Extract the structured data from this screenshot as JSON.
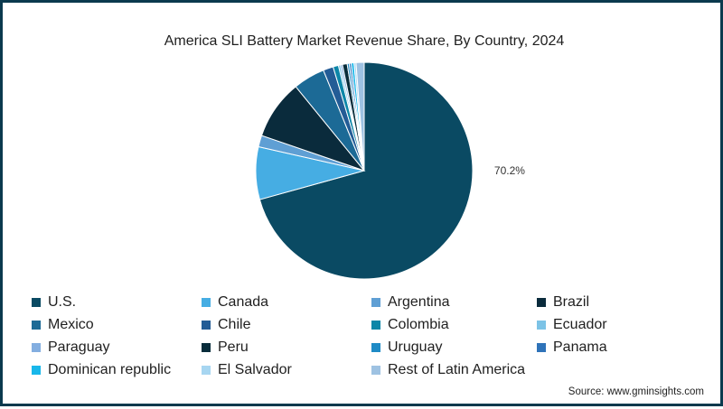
{
  "chart_data": {
    "type": "pie",
    "title": "America SLI Battery Market Revenue Share, By Country, 2024",
    "start_angle_deg": 0,
    "direction": "clockwise",
    "slices": [
      {
        "label": "U.S.",
        "value": 70.2,
        "color": "#0a4a63",
        "show_label": true,
        "value_label": "70.2%"
      },
      {
        "label": "Canada",
        "value": 7.8,
        "color": "#46ade3"
      },
      {
        "label": "Argentina",
        "value": 1.7,
        "color": "#5f9fd4"
      },
      {
        "label": "Brazil",
        "value": 8.8,
        "color": "#0a2b3c"
      },
      {
        "label": "Mexico",
        "value": 4.7,
        "color": "#1c6a96"
      },
      {
        "label": "Chile",
        "value": 1.5,
        "color": "#235c96"
      },
      {
        "label": "Colombia",
        "value": 0.8,
        "color": "#0c86a8"
      },
      {
        "label": "Ecuador",
        "value": 0.3,
        "color": "#7cc3e6"
      },
      {
        "label": "Paraguay",
        "value": 0.3,
        "color": "#83aee0"
      },
      {
        "label": "Peru",
        "value": 0.7,
        "color": "#082d3b"
      },
      {
        "label": "Uruguay",
        "value": 0.3,
        "color": "#1f8bc6"
      },
      {
        "label": "Panama",
        "value": 0.3,
        "color": "#2f73b9"
      },
      {
        "label": "Dominican republic",
        "value": 0.4,
        "color": "#18b7ea"
      },
      {
        "label": "El Salvador",
        "value": 0.3,
        "color": "#a7d6f1"
      },
      {
        "label": "Rest of Latin America",
        "value": 1.2,
        "color": "#9ec2e2"
      }
    ],
    "legend_position": "bottom"
  },
  "source": "Source: www.gminsights.com",
  "colors": {
    "frame_border": "#0b3a4e",
    "text": "#1f1f1f",
    "slice_stroke": "#ffffff"
  }
}
